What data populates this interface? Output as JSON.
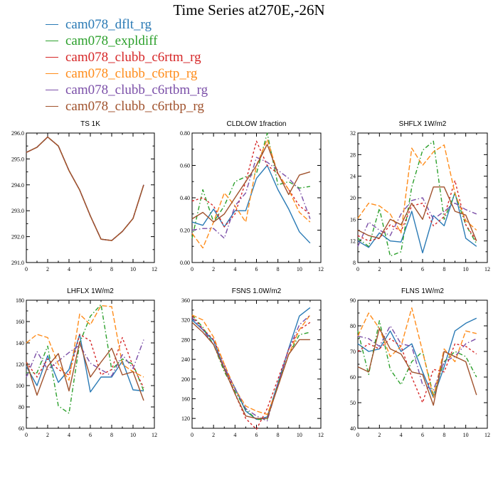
{
  "page_title": "Time Series at270E,-26N",
  "legend": [
    {
      "name": "cam078_dflt_rg",
      "color": "#2a7ab5"
    },
    {
      "name": "cam078_expldiff",
      "color": "#2ca02c"
    },
    {
      "name": "cam078_clubb_c6rtm_rg",
      "color": "#d62728"
    },
    {
      "name": "cam078_clubb_c6rtp_rg",
      "color": "#ff8c1a"
    },
    {
      "name": "cam078_clubb_c6rtbm_rg",
      "color": "#7b4fa8"
    },
    {
      "name": "cam078_clubb_c6rtbp_rg",
      "color": "#a0522d"
    }
  ],
  "chart_data": [
    {
      "type": "line",
      "title": "TS   1K",
      "x": [
        0,
        1,
        2,
        3,
        4,
        5,
        6,
        7,
        8,
        9,
        10,
        11
      ],
      "xlim": [
        0,
        12
      ],
      "xticks": [
        0,
        2,
        4,
        6,
        8,
        10,
        12
      ],
      "ylim": [
        291.0,
        296.0
      ],
      "yticks": [
        291.0,
        292.0,
        293.0,
        294.0,
        295.0,
        296.0
      ],
      "ytick_labels": [
        "291.0",
        "292.0",
        "293.0",
        "294.0",
        "295.0",
        "296.0"
      ],
      "series": [
        {
          "name": "cam078_dflt_rg",
          "values": [
            295.25,
            295.45,
            295.85,
            295.5,
            294.55,
            293.8,
            292.8,
            291.9,
            291.85,
            292.2,
            292.7,
            294.0
          ]
        },
        {
          "name": "cam078_expldiff",
          "values": [
            295.25,
            295.45,
            295.85,
            295.5,
            294.55,
            293.8,
            292.8,
            291.9,
            291.85,
            292.2,
            292.7,
            294.0
          ]
        },
        {
          "name": "cam078_clubb_c6rtm_rg",
          "values": [
            295.25,
            295.45,
            295.85,
            295.5,
            294.55,
            293.8,
            292.8,
            291.9,
            291.85,
            292.2,
            292.7,
            294.0
          ]
        },
        {
          "name": "cam078_clubb_c6rtp_rg",
          "values": [
            295.25,
            295.45,
            295.85,
            295.5,
            294.55,
            293.8,
            292.8,
            291.9,
            291.85,
            292.2,
            292.7,
            294.0
          ]
        },
        {
          "name": "cam078_clubb_c6rtbm_rg",
          "values": [
            295.25,
            295.45,
            295.85,
            295.5,
            294.55,
            293.8,
            292.8,
            291.9,
            291.85,
            292.2,
            292.7,
            294.0
          ]
        },
        {
          "name": "cam078_clubb_c6rtbp_rg",
          "values": [
            295.25,
            295.45,
            295.85,
            295.5,
            294.55,
            293.8,
            292.8,
            291.9,
            291.85,
            292.2,
            292.7,
            294.0
          ]
        }
      ]
    },
    {
      "type": "line",
      "title": "CLDLOW   1fraction",
      "x": [
        0,
        1,
        2,
        3,
        4,
        5,
        6,
        7,
        8,
        9,
        10,
        11
      ],
      "xlim": [
        0,
        12
      ],
      "xticks": [
        0,
        2,
        4,
        6,
        8,
        10,
        12
      ],
      "ylim": [
        0.0,
        0.8
      ],
      "yticks": [
        0.0,
        0.2,
        0.4,
        0.6,
        0.8
      ],
      "ytick_labels": [
        "0.00",
        "0.20",
        "0.40",
        "0.60",
        "0.80"
      ],
      "series": [
        {
          "name": "cam078_dflt_rg",
          "values": [
            0.25,
            0.23,
            0.33,
            0.22,
            0.32,
            0.32,
            0.52,
            0.6,
            0.45,
            0.33,
            0.19,
            0.12
          ]
        },
        {
          "name": "cam078_expldiff",
          "values": [
            0.15,
            0.45,
            0.25,
            0.35,
            0.5,
            0.53,
            0.55,
            0.8,
            0.48,
            0.5,
            0.46,
            0.47
          ]
        },
        {
          "name": "cam078_clubb_c6rtm_rg",
          "values": [
            0.38,
            0.4,
            0.35,
            0.22,
            0.3,
            0.5,
            0.75,
            0.6,
            0.55,
            0.45,
            0.35,
            0.3
          ]
        },
        {
          "name": "cam078_clubb_c6rtp_rg",
          "values": [
            0.18,
            0.09,
            0.25,
            0.43,
            0.35,
            0.25,
            0.6,
            0.76,
            0.55,
            0.45,
            0.31,
            0.25
          ]
        },
        {
          "name": "cam078_clubb_c6rtbm_rg",
          "values": [
            0.2,
            0.21,
            0.21,
            0.15,
            0.35,
            0.43,
            0.65,
            0.62,
            0.57,
            0.52,
            0.45,
            0.27
          ]
        },
        {
          "name": "cam078_clubb_c6rtbp_rg",
          "values": [
            0.27,
            0.31,
            0.25,
            0.3,
            0.4,
            0.5,
            0.6,
            0.73,
            0.55,
            0.42,
            0.54,
            0.56
          ]
        }
      ]
    },
    {
      "type": "line",
      "title": "SHFLX   1W/m2",
      "x": [
        0,
        1,
        2,
        3,
        4,
        5,
        6,
        7,
        8,
        9,
        10,
        11
      ],
      "xlim": [
        0,
        12
      ],
      "xticks": [
        0,
        2,
        4,
        6,
        8,
        10,
        12
      ],
      "ylim": [
        8,
        32
      ],
      "yticks": [
        8,
        12,
        16,
        20,
        24,
        28,
        32
      ],
      "ytick_labels": [
        "8",
        "12",
        "16",
        "20",
        "24",
        "28",
        "32"
      ],
      "series": [
        {
          "name": "cam078_dflt_rg",
          "values": [
            12.0,
            10.8,
            13.5,
            12.0,
            11.8,
            17.5,
            9.8,
            16.7,
            14.8,
            21.0,
            12.5,
            11.0
          ]
        },
        {
          "name": "cam078_expldiff",
          "values": [
            12.5,
            11.0,
            18.0,
            9.2,
            10.0,
            22.0,
            28.8,
            30.5,
            16.0,
            20.8,
            15.0,
            11.5
          ]
        },
        {
          "name": "cam078_clubb_c6rtm_rg",
          "values": [
            13.0,
            12.0,
            12.5,
            15.0,
            13.8,
            18.5,
            19.0,
            14.8,
            16.5,
            23.2,
            15.0,
            12.0
          ]
        },
        {
          "name": "cam078_clubb_c6rtp_rg",
          "values": [
            16.2,
            19.0,
            18.5,
            17.0,
            13.5,
            29.2,
            26.0,
            28.5,
            29.8,
            20.8,
            15.8,
            14.0
          ]
        },
        {
          "name": "cam078_clubb_c6rtbm_rg",
          "values": [
            11.0,
            15.5,
            14.0,
            13.0,
            17.0,
            19.5,
            20.0,
            16.0,
            17.5,
            19.0,
            17.8,
            17.0
          ]
        },
        {
          "name": "cam078_clubb_c6rtbp_rg",
          "values": [
            14.0,
            13.0,
            12.5,
            16.0,
            15.0,
            19.0,
            16.0,
            22.0,
            22.0,
            17.5,
            16.8,
            12.0
          ]
        }
      ]
    },
    {
      "type": "line",
      "title": "LHFLX   1W/m2",
      "x": [
        0,
        1,
        2,
        3,
        4,
        5,
        6,
        7,
        8,
        9,
        10,
        11
      ],
      "xlim": [
        0,
        12
      ],
      "xticks": [
        0,
        2,
        4,
        6,
        8,
        10,
        12
      ],
      "ylim": [
        60,
        180
      ],
      "yticks": [
        60,
        80,
        100,
        120,
        140,
        160,
        180
      ],
      "ytick_labels": [
        "60",
        "80",
        "100",
        "120",
        "140",
        "160",
        "180"
      ],
      "series": [
        {
          "name": "cam078_dflt_rg",
          "values": [
            118,
            100,
            128,
            103,
            115,
            148,
            94,
            108,
            108,
            123,
            96,
            95
          ]
        },
        {
          "name": "cam078_expldiff",
          "values": [
            112,
            112,
            137,
            81,
            74,
            140,
            165,
            176,
            115,
            125,
            120,
            95
          ]
        },
        {
          "name": "cam078_clubb_c6rtm_rg",
          "values": [
            122,
            108,
            125,
            115,
            110,
            148,
            142,
            110,
            115,
            145,
            118,
            98
          ]
        },
        {
          "name": "cam078_clubb_c6rtp_rg",
          "values": [
            140,
            148,
            145,
            120,
            105,
            167,
            157,
            175,
            174,
            120,
            113,
            108
          ]
        },
        {
          "name": "cam078_clubb_c6rtbm_rg",
          "values": [
            108,
            132,
            115,
            123,
            131,
            138,
            121,
            115,
            109,
            129,
            116,
            143
          ]
        },
        {
          "name": "cam078_clubb_c6rtbp_rg",
          "values": [
            122,
            91,
            118,
            130,
            95,
            141,
            108,
            122,
            135,
            110,
            113,
            86
          ]
        }
      ]
    },
    {
      "type": "line",
      "title": "FSNS   1.0W/m2",
      "x": [
        0,
        1,
        2,
        3,
        4,
        5,
        6,
        7,
        8,
        9,
        10,
        11
      ],
      "xlim": [
        0,
        12
      ],
      "xticks": [
        0,
        2,
        4,
        6,
        8,
        10,
        12
      ],
      "ylim": [
        100,
        360
      ],
      "yticks": [
        120,
        160,
        200,
        240,
        280,
        320,
        360
      ],
      "ytick_labels": [
        "120",
        "160",
        "200",
        "240",
        "280",
        "320",
        "360"
      ],
      "series": [
        {
          "name": "cam078_dflt_rg",
          "values": [
            320,
            300,
            278,
            222,
            182,
            135,
            118,
            123,
            192,
            262,
            328,
            345
          ]
        },
        {
          "name": "cam078_expldiff",
          "values": [
            330,
            305,
            270,
            215,
            175,
            138,
            118,
            118,
            190,
            250,
            290,
            295
          ]
        },
        {
          "name": "cam078_clubb_c6rtm_rg",
          "values": [
            328,
            302,
            280,
            230,
            170,
            120,
            98,
            140,
            200,
            260,
            300,
            315
          ]
        },
        {
          "name": "cam078_clubb_c6rtp_rg",
          "values": [
            330,
            320,
            285,
            230,
            180,
            145,
            135,
            128,
            185,
            250,
            300,
            330
          ]
        },
        {
          "name": "cam078_clubb_c6rtbm_rg",
          "values": [
            325,
            300,
            270,
            225,
            180,
            140,
            125,
            115,
            190,
            260,
            310,
            330
          ]
        },
        {
          "name": "cam078_clubb_c6rtbp_rg",
          "values": [
            315,
            295,
            270,
            220,
            170,
            125,
            120,
            120,
            185,
            250,
            280,
            280
          ]
        }
      ]
    },
    {
      "type": "line",
      "title": "FLNS   1W/m2",
      "x": [
        0,
        1,
        2,
        3,
        4,
        5,
        6,
        7,
        8,
        9,
        10,
        11
      ],
      "xlim": [
        0,
        12
      ],
      "xticks": [
        0,
        2,
        4,
        6,
        8,
        10,
        12
      ],
      "ylim": [
        40,
        90
      ],
      "yticks": [
        40,
        50,
        60,
        70,
        80,
        90
      ],
      "ytick_labels": [
        "40",
        "50",
        "60",
        "70",
        "80",
        "90"
      ],
      "series": [
        {
          "name": "cam078_dflt_rg",
          "values": [
            73,
            70,
            71,
            78,
            70,
            73,
            62,
            52,
            64,
            78,
            81,
            83
          ]
        },
        {
          "name": "cam078_expldiff",
          "values": [
            78,
            61,
            82,
            63,
            57,
            66,
            70,
            53,
            66,
            70,
            68,
            60
          ]
        },
        {
          "name": "cam078_clubb_c6rtm_rg",
          "values": [
            70,
            73,
            71,
            75,
            72,
            60,
            50,
            63,
            62,
            73,
            72,
            69
          ]
        },
        {
          "name": "cam078_clubb_c6rtp_rg",
          "values": [
            76,
            85,
            79,
            68,
            72,
            87,
            70,
            52,
            71,
            66,
            78,
            77
          ]
        },
        {
          "name": "cam078_clubb_c6rtbm_rg",
          "values": [
            76,
            75,
            72,
            80,
            73,
            72,
            57,
            55,
            66,
            68,
            73,
            75
          ]
        },
        {
          "name": "cam078_clubb_c6rtbp_rg",
          "values": [
            64,
            62,
            79,
            71,
            69,
            62,
            61,
            49,
            70,
            68,
            66,
            53
          ]
        }
      ]
    }
  ]
}
